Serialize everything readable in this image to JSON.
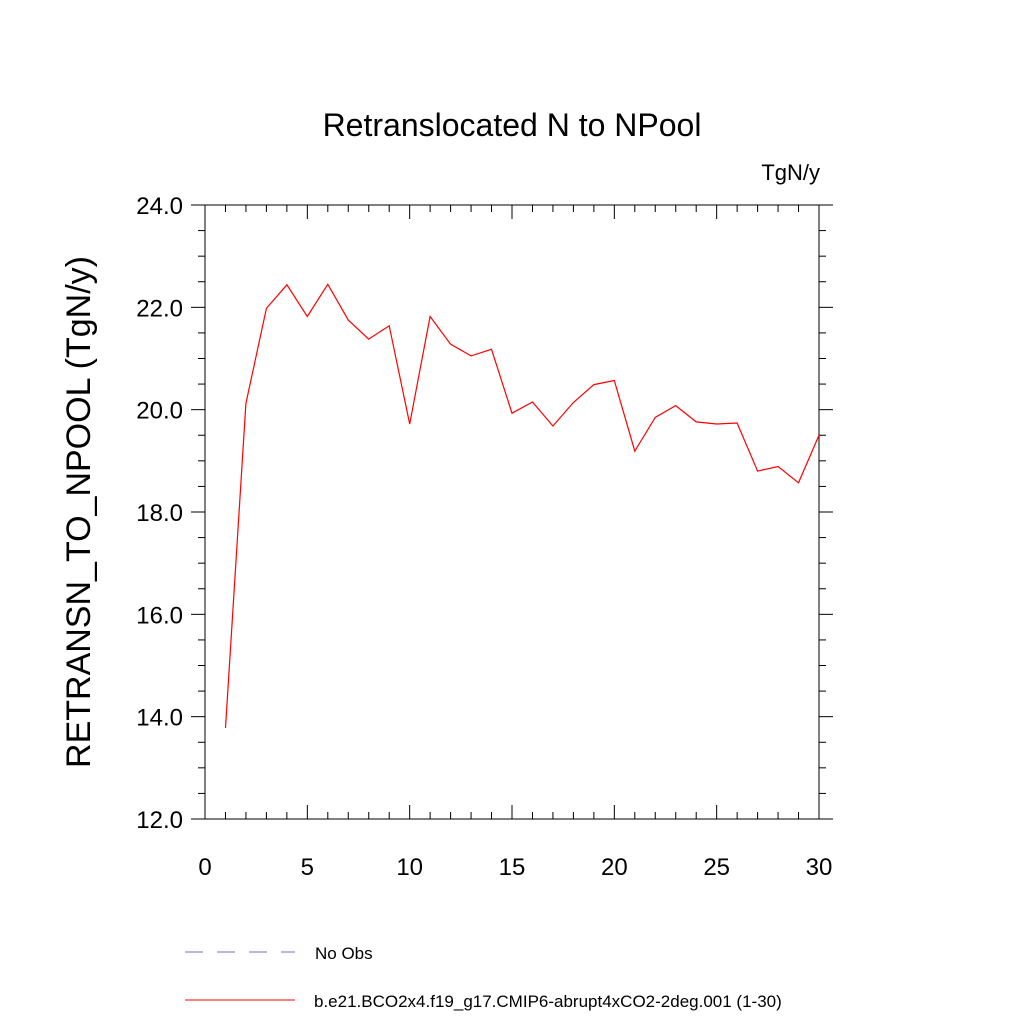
{
  "chart_data": {
    "type": "line",
    "title": "Retranslocated N to NPool",
    "units_label": "TgN/y",
    "ylabel": "RETRANSN_TO_NPOOL  (TgN/y)",
    "xlabel": "",
    "xlim": [
      0,
      30
    ],
    "ylim": [
      12.0,
      24.0
    ],
    "x_ticks": [
      0,
      5,
      10,
      15,
      20,
      25,
      30
    ],
    "x_tick_labels": [
      "0",
      "5",
      "10",
      "15",
      "20",
      "25",
      "30"
    ],
    "y_ticks": [
      12.0,
      14.0,
      16.0,
      18.0,
      20.0,
      22.0,
      24.0
    ],
    "y_tick_labels": [
      "12.0",
      "14.0",
      "16.0",
      "18.0",
      "20.0",
      "22.0",
      "24.0"
    ],
    "grid": false,
    "legend_position": "bottom",
    "series": [
      {
        "name": "b.e21.BCO2x4.f19_g17.CMIP6-abrupt4xCO2-2deg.001 (1-30)",
        "color": "#ff0000",
        "style": "solid",
        "x": [
          1,
          2,
          3,
          4,
          5,
          6,
          7,
          8,
          9,
          10,
          11,
          12,
          13,
          14,
          15,
          16,
          17,
          18,
          19,
          20,
          21,
          22,
          23,
          24,
          25,
          26,
          27,
          28,
          29,
          30
        ],
        "values": [
          13.78,
          20.12,
          21.98,
          22.44,
          21.82,
          22.45,
          21.75,
          21.38,
          21.64,
          19.72,
          21.82,
          21.28,
          21.05,
          21.18,
          19.93,
          20.15,
          19.68,
          20.14,
          20.49,
          20.57,
          19.19,
          19.85,
          20.08,
          19.76,
          19.72,
          19.74,
          18.8,
          18.89,
          18.57,
          19.5
        ]
      }
    ],
    "legend": [
      {
        "label": "No Obs",
        "color": "#6f6fc4",
        "style": "dashed"
      },
      {
        "label": "b.e21.BCO2x4.f19_g17.CMIP6-abrupt4xCO2-2deg.001 (1-30)",
        "color": "#ff0000",
        "style": "solid"
      }
    ]
  }
}
